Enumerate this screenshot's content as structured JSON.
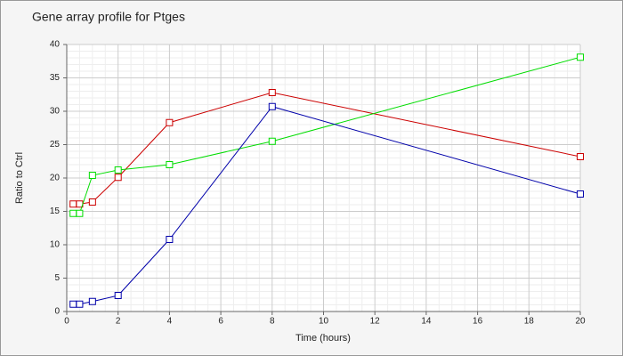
{
  "chart_data": {
    "type": "line",
    "title": "Gene array profile for Ptges",
    "x_label": "Time (hours)",
    "y_label": "Ratio to Ctrl",
    "x": [
      0.25,
      0.5,
      1,
      2,
      4,
      8,
      20
    ],
    "series": [
      {
        "color": "#cc0000",
        "values": [
          16.1,
          16.1,
          16.4,
          20.1,
          28.3,
          32.8,
          23.2
        ]
      },
      {
        "color": "#00dd00",
        "values": [
          14.7,
          14.7,
          20.4,
          21.2,
          22.0,
          25.5,
          38.1
        ]
      },
      {
        "color": "#0000aa",
        "values": [
          1.1,
          1.1,
          1.5,
          2.4,
          10.8,
          30.7,
          17.6
        ]
      }
    ],
    "xlim": [
      0,
      20
    ],
    "xticks": [
      0,
      2,
      4,
      6,
      8,
      10,
      12,
      14,
      16,
      18,
      20
    ],
    "ylim": [
      0,
      40
    ],
    "yticks": [
      0,
      5,
      10,
      15,
      20,
      25,
      30,
      35,
      40
    ],
    "grid": true
  }
}
